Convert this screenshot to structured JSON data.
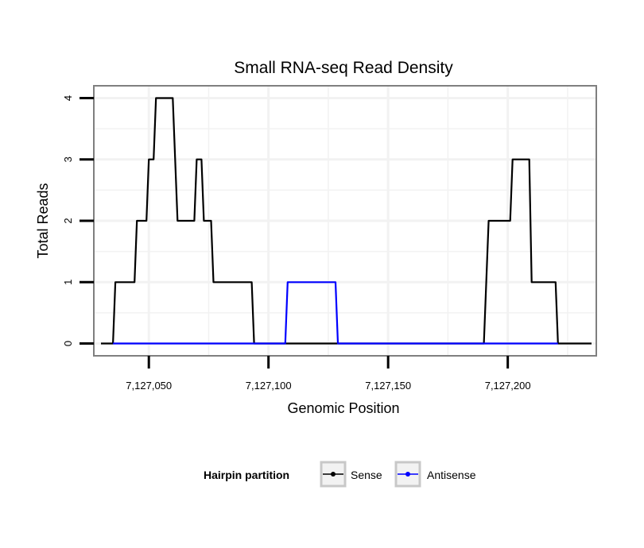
{
  "chart_data": {
    "type": "line",
    "title": "Small RNA-seq Read Density",
    "xlabel": "Genomic Position",
    "ylabel": "Total Reads",
    "xlim": [
      7127027,
      7127237
    ],
    "ylim": [
      -0.2,
      4.2
    ],
    "x_ticks": [
      7127050,
      7127100,
      7127150,
      7127200
    ],
    "x_tick_labels": [
      "7,127,050",
      "7,127,100",
      "7,127,150",
      "7,127,200"
    ],
    "y_ticks": [
      0,
      1,
      2,
      3,
      4
    ],
    "y_tick_labels": [
      "0",
      "1",
      "2",
      "3",
      "4"
    ],
    "grid": true,
    "legend": {
      "title": "Hairpin partition",
      "position": "bottom"
    },
    "series": [
      {
        "name": "Sense",
        "color": "#000000",
        "points": [
          [
            7127030,
            0
          ],
          [
            7127035,
            0
          ],
          [
            7127036,
            1
          ],
          [
            7127044,
            1
          ],
          [
            7127045,
            2
          ],
          [
            7127049,
            2
          ],
          [
            7127050,
            3
          ],
          [
            7127052,
            3
          ],
          [
            7127053,
            4
          ],
          [
            7127060,
            4
          ],
          [
            7127062,
            2
          ],
          [
            7127069,
            2
          ],
          [
            7127070,
            3
          ],
          [
            7127072,
            3
          ],
          [
            7127073,
            2
          ],
          [
            7127076,
            2
          ],
          [
            7127077,
            1
          ],
          [
            7127093,
            1
          ],
          [
            7127094,
            0
          ],
          [
            7127190,
            0
          ],
          [
            7127192,
            2
          ],
          [
            7127201,
            2
          ],
          [
            7127202,
            3
          ],
          [
            7127209,
            3
          ],
          [
            7127210,
            1
          ],
          [
            7127220,
            1
          ],
          [
            7127221,
            0
          ],
          [
            7127235,
            0
          ]
        ]
      },
      {
        "name": "Antisense",
        "color": "#0000ff",
        "points": [
          [
            7127035,
            0
          ],
          [
            7127107,
            0
          ],
          [
            7127108,
            1
          ],
          [
            7127128,
            1
          ],
          [
            7127129,
            0
          ],
          [
            7127190,
            0
          ],
          [
            7127221,
            0
          ]
        ]
      }
    ]
  }
}
